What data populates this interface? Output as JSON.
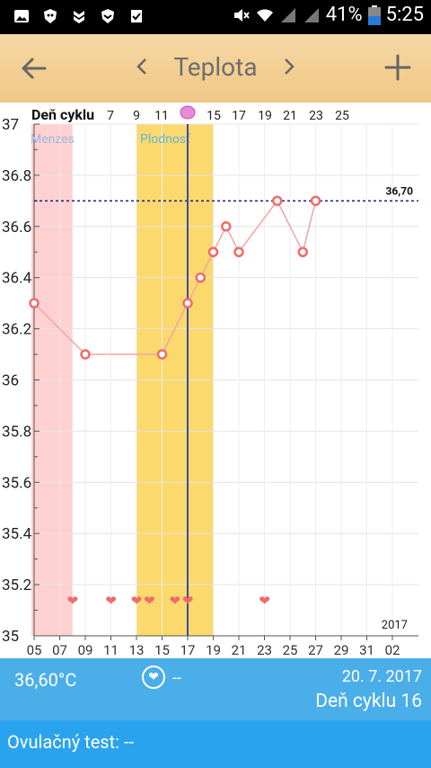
{
  "status_bar": {
    "battery_percent": "41%",
    "time": "5:25"
  },
  "app_bar": {
    "title": "Teplota"
  },
  "chart_data": {
    "type": "line",
    "x_label": "Deň cyklu",
    "top_cycle_labels": [
      "7",
      "9",
      "11",
      "15",
      "17",
      "19",
      "21",
      "23",
      "25"
    ],
    "bottom_date_labels": [
      "05",
      "07",
      "09",
      "11",
      "13",
      "15",
      "17",
      "19",
      "21",
      "23",
      "25",
      "27",
      "29",
      "31",
      "02"
    ],
    "y_ticks": [
      37,
      36.8,
      36.6,
      36.4,
      36.2,
      36,
      35.8,
      35.6,
      35.4,
      35.2,
      35
    ],
    "y_tick_labels": [
      "37",
      "36.8",
      "36.6",
      "36.4",
      "36.2",
      "36",
      "35.8",
      "35.6",
      "35.4",
      "35.2",
      "35"
    ],
    "ylim": [
      35,
      37
    ],
    "year_label": "2017",
    "menses_label": "Menzes",
    "fertile_label": "Plodnosť",
    "threshold": 36.7,
    "threshold_label": "36,70",
    "ovulation_day": 17,
    "menses_range": [
      5,
      8
    ],
    "fertile_range": [
      13,
      19
    ],
    "series": [
      {
        "x": [
          5,
          9,
          15,
          17,
          18,
          19,
          20,
          21,
          24,
          26,
          27
        ],
        "y": [
          36.3,
          36.1,
          36.1,
          36.3,
          36.4,
          36.5,
          36.6,
          36.5,
          36.7,
          36.5,
          36.7
        ]
      }
    ],
    "hearts_x": [
      8,
      11,
      13,
      14,
      16,
      17,
      23
    ]
  },
  "footer": {
    "temperature": "36,60°C",
    "heart_value": "--",
    "date": "20. 7. 2017",
    "cycle_day": "Deň cyklu 16",
    "ovulation_test": "Ovulačný test: --"
  },
  "colors": {
    "menses": "#ffd1d1",
    "fertile": "#fbd96c",
    "line": "#f4a3a3",
    "marker": "#f26a6a",
    "threshold": "#0b1d8a",
    "ovulation_line": "#3b4aa8"
  }
}
